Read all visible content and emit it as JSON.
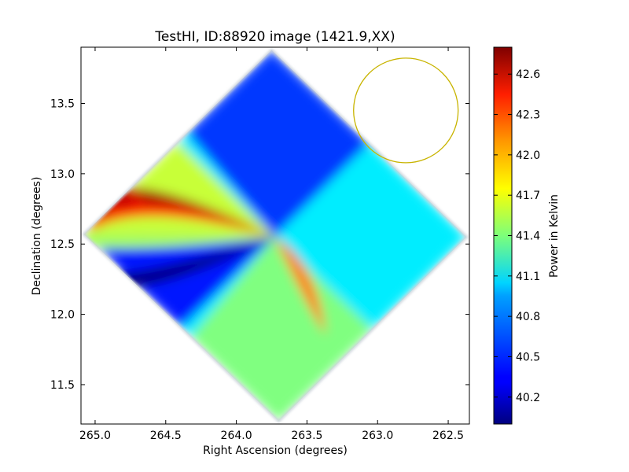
{
  "chart_data": {
    "type": "heatmap",
    "title": "TestHI, ID:88920 image (1421.9,XX)",
    "xlabel": "Right Ascension (degrees)",
    "ylabel": "Declination (degrees)",
    "xlim": [
      265.1,
      262.35
    ],
    "ylim": [
      11.22,
      13.9
    ],
    "x_ticks": [
      265.0,
      264.5,
      264.0,
      263.5,
      263.0,
      262.5
    ],
    "x_tick_labels": [
      "265.0",
      "264.5",
      "264.0",
      "263.5",
      "263.0",
      "262.5"
    ],
    "y_ticks": [
      11.5,
      12.0,
      12.5,
      13.0,
      13.5
    ],
    "y_tick_labels": [
      "11.5",
      "12.0",
      "12.5",
      "13.0",
      "13.5"
    ],
    "colorbar": {
      "label": "Power in Kelvin",
      "range": [
        40.0,
        42.8
      ],
      "ticks": [
        40.2,
        40.5,
        40.8,
        41.1,
        41.4,
        41.7,
        42.0,
        42.3,
        42.6
      ],
      "tick_labels": [
        "40.2",
        "40.5",
        "40.8",
        "41.1",
        "41.4",
        "41.7",
        "42.0",
        "42.3",
        "42.6"
      ],
      "colormap": "jet"
    },
    "map": {
      "center": [
        263.73,
        12.55
      ],
      "corners": {
        "top": [
          263.75,
          13.88
        ],
        "right": [
          262.37,
          12.55
        ],
        "bottom": [
          263.7,
          11.24
        ],
        "left": [
          265.08,
          12.57
        ]
      },
      "lobes": [
        {
          "name": "upper-left",
          "value": 41.6,
          "peak": 42.7
        },
        {
          "name": "lower-left",
          "value": 40.4,
          "peak": 40.0
        },
        {
          "name": "top",
          "value": 40.5
        },
        {
          "name": "right",
          "value": 41.0
        },
        {
          "name": "bottom",
          "value": 41.4
        },
        {
          "name": "lower-center-streak",
          "value": 42.1
        }
      ]
    },
    "beam_circle": {
      "center": [
        262.8,
        13.45
      ],
      "radius_deg": 0.37,
      "color": "#c8b400"
    }
  }
}
